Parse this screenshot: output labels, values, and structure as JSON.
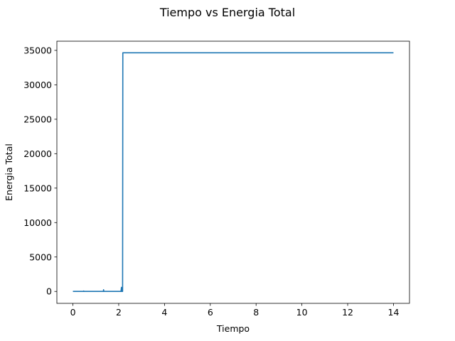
{
  "chart_data": {
    "type": "line",
    "title": "Tiempo vs Energia Total",
    "xlabel": "Tiempo",
    "ylabel": "Energia Total",
    "xlim": [
      -0.7,
      14.7
    ],
    "ylim": [
      -1730,
      36330
    ],
    "xticks": [
      0,
      2,
      4,
      6,
      8,
      10,
      12,
      14
    ],
    "yticks": [
      0,
      5000,
      10000,
      15000,
      20000,
      25000,
      30000,
      35000
    ],
    "grid": false,
    "legend": "none",
    "series": [
      {
        "color": "#1f77b4",
        "x": [
          0,
          0.45,
          0.47,
          0.49,
          0.52,
          1.33,
          1.34,
          1.35,
          1.36,
          2.1,
          2.12,
          2.13,
          2.15,
          2.16,
          2.17,
          2.18,
          2.19,
          14
        ],
        "y": [
          0,
          0,
          60,
          0,
          0,
          0,
          250,
          0,
          0,
          0,
          600,
          0,
          0,
          0,
          0,
          34650,
          34650,
          34650
        ]
      }
    ]
  }
}
